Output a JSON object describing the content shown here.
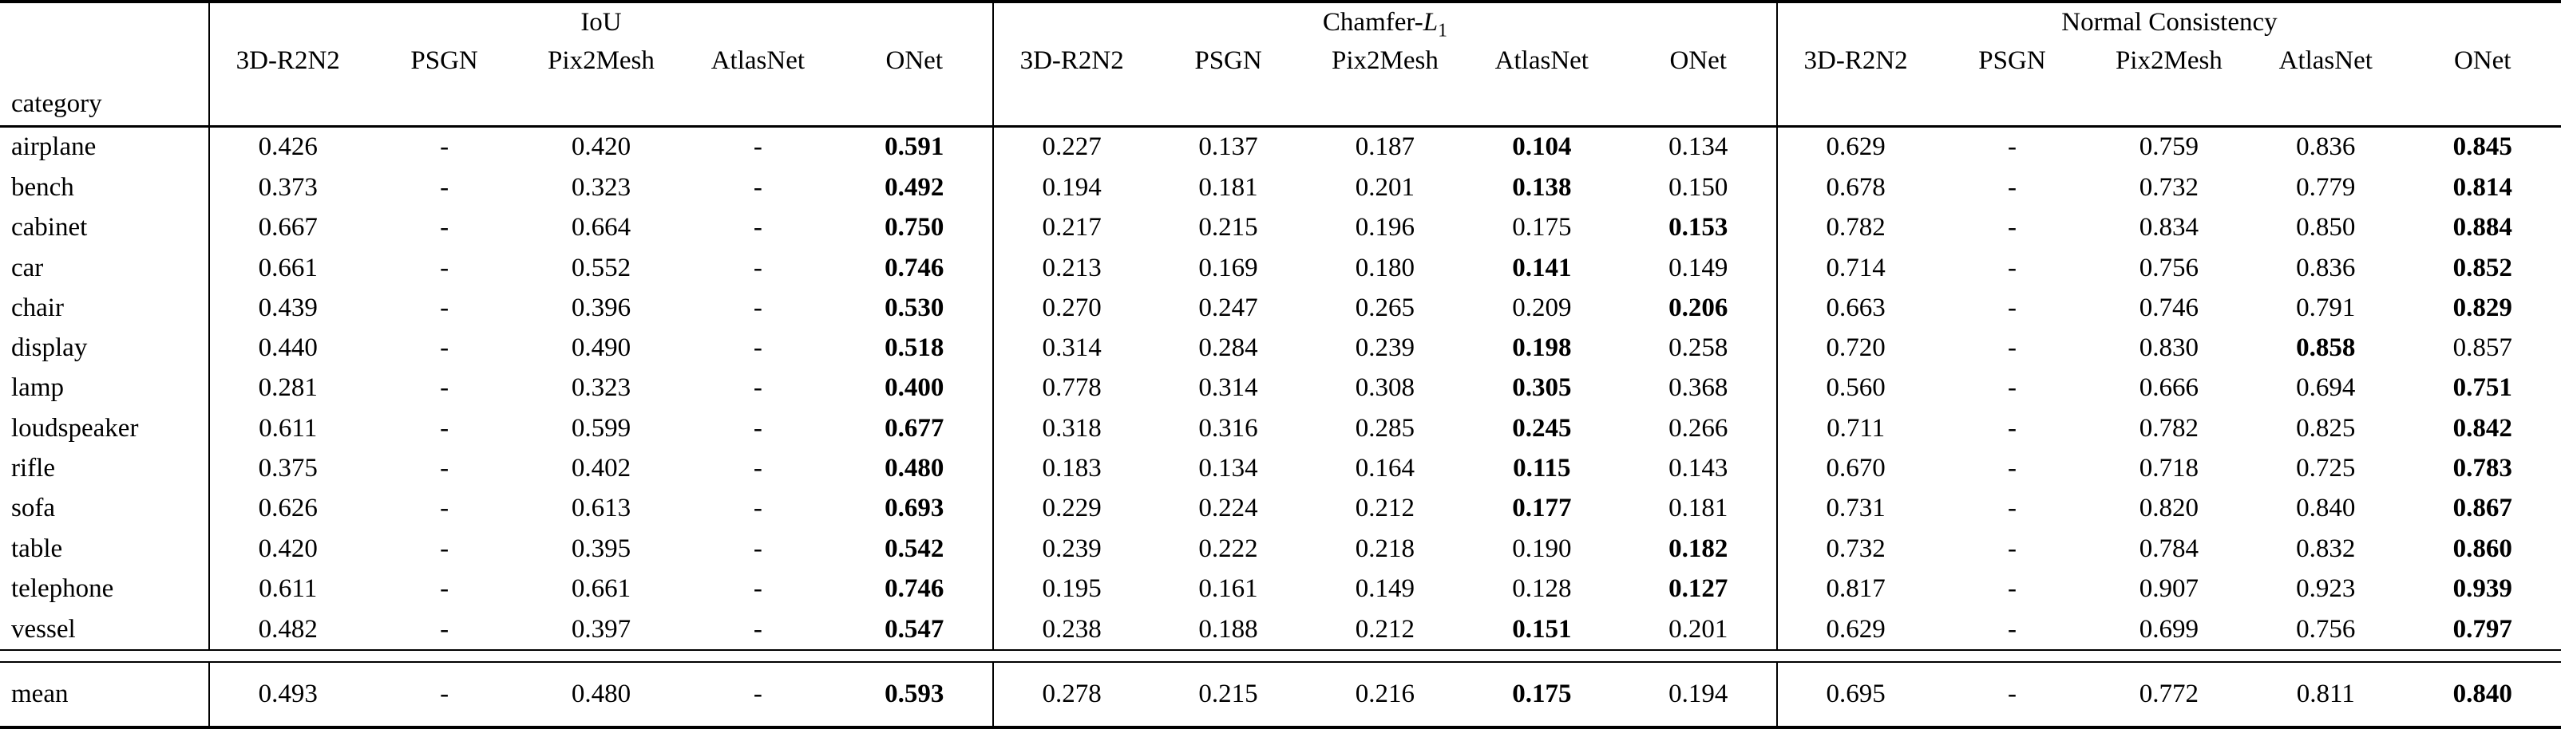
{
  "table": {
    "corner_label": "category",
    "dash": "-",
    "groups": [
      {
        "name": "iou",
        "title_parts": [
          {
            "text": "IoU"
          }
        ],
        "methods": [
          "3D-R2N2",
          "PSGN",
          "Pix2Mesh",
          "AtlasNet",
          "ONet"
        ]
      },
      {
        "name": "chamfer-l1",
        "title_parts": [
          {
            "text": "Chamfer-"
          },
          {
            "text": "L",
            "italic": true
          },
          {
            "text": "1",
            "sub": true
          }
        ],
        "methods": [
          "3D-R2N2",
          "PSGN",
          "Pix2Mesh",
          "AtlasNet",
          "ONet"
        ]
      },
      {
        "name": "normal-consistency",
        "title_parts": [
          {
            "text": "Normal Consistency"
          }
        ],
        "methods": [
          "3D-R2N2",
          "PSGN",
          "Pix2Mesh",
          "AtlasNet",
          "ONet"
        ]
      }
    ],
    "rows": [
      {
        "category": "airplane",
        "values": [
          [
            "0.426",
            "-",
            "0.420",
            "-",
            "0.591"
          ],
          [
            "0.227",
            "0.137",
            "0.187",
            "0.104",
            "0.134"
          ],
          [
            "0.629",
            "-",
            "0.759",
            "0.836",
            "0.845"
          ]
        ],
        "bold": [
          [
            4
          ],
          [
            3
          ],
          [
            4
          ]
        ]
      },
      {
        "category": "bench",
        "values": [
          [
            "0.373",
            "-",
            "0.323",
            "-",
            "0.492"
          ],
          [
            "0.194",
            "0.181",
            "0.201",
            "0.138",
            "0.150"
          ],
          [
            "0.678",
            "-",
            "0.732",
            "0.779",
            "0.814"
          ]
        ],
        "bold": [
          [
            4
          ],
          [
            3
          ],
          [
            4
          ]
        ]
      },
      {
        "category": "cabinet",
        "values": [
          [
            "0.667",
            "-",
            "0.664",
            "-",
            "0.750"
          ],
          [
            "0.217",
            "0.215",
            "0.196",
            "0.175",
            "0.153"
          ],
          [
            "0.782",
            "-",
            "0.834",
            "0.850",
            "0.884"
          ]
        ],
        "bold": [
          [
            4
          ],
          [
            4
          ],
          [
            4
          ]
        ]
      },
      {
        "category": "car",
        "values": [
          [
            "0.661",
            "-",
            "0.552",
            "-",
            "0.746"
          ],
          [
            "0.213",
            "0.169",
            "0.180",
            "0.141",
            "0.149"
          ],
          [
            "0.714",
            "-",
            "0.756",
            "0.836",
            "0.852"
          ]
        ],
        "bold": [
          [
            4
          ],
          [
            3
          ],
          [
            4
          ]
        ]
      },
      {
        "category": "chair",
        "values": [
          [
            "0.439",
            "-",
            "0.396",
            "-",
            "0.530"
          ],
          [
            "0.270",
            "0.247",
            "0.265",
            "0.209",
            "0.206"
          ],
          [
            "0.663",
            "-",
            "0.746",
            "0.791",
            "0.829"
          ]
        ],
        "bold": [
          [
            4
          ],
          [
            4
          ],
          [
            4
          ]
        ]
      },
      {
        "category": "display",
        "values": [
          [
            "0.440",
            "-",
            "0.490",
            "-",
            "0.518"
          ],
          [
            "0.314",
            "0.284",
            "0.239",
            "0.198",
            "0.258"
          ],
          [
            "0.720",
            "-",
            "0.830",
            "0.858",
            "0.857"
          ]
        ],
        "bold": [
          [
            4
          ],
          [
            3
          ],
          [
            3
          ]
        ]
      },
      {
        "category": "lamp",
        "values": [
          [
            "0.281",
            "-",
            "0.323",
            "-",
            "0.400"
          ],
          [
            "0.778",
            "0.314",
            "0.308",
            "0.305",
            "0.368"
          ],
          [
            "0.560",
            "-",
            "0.666",
            "0.694",
            "0.751"
          ]
        ],
        "bold": [
          [
            4
          ],
          [
            3
          ],
          [
            4
          ]
        ]
      },
      {
        "category": "loudspeaker",
        "values": [
          [
            "0.611",
            "-",
            "0.599",
            "-",
            "0.677"
          ],
          [
            "0.318",
            "0.316",
            "0.285",
            "0.245",
            "0.266"
          ],
          [
            "0.711",
            "-",
            "0.782",
            "0.825",
            "0.842"
          ]
        ],
        "bold": [
          [
            4
          ],
          [
            3
          ],
          [
            4
          ]
        ]
      },
      {
        "category": "rifle",
        "values": [
          [
            "0.375",
            "-",
            "0.402",
            "-",
            "0.480"
          ],
          [
            "0.183",
            "0.134",
            "0.164",
            "0.115",
            "0.143"
          ],
          [
            "0.670",
            "-",
            "0.718",
            "0.725",
            "0.783"
          ]
        ],
        "bold": [
          [
            4
          ],
          [
            3
          ],
          [
            4
          ]
        ]
      },
      {
        "category": "sofa",
        "values": [
          [
            "0.626",
            "-",
            "0.613",
            "-",
            "0.693"
          ],
          [
            "0.229",
            "0.224",
            "0.212",
            "0.177",
            "0.181"
          ],
          [
            "0.731",
            "-",
            "0.820",
            "0.840",
            "0.867"
          ]
        ],
        "bold": [
          [
            4
          ],
          [
            3
          ],
          [
            4
          ]
        ]
      },
      {
        "category": "table",
        "values": [
          [
            "0.420",
            "-",
            "0.395",
            "-",
            "0.542"
          ],
          [
            "0.239",
            "0.222",
            "0.218",
            "0.190",
            "0.182"
          ],
          [
            "0.732",
            "-",
            "0.784",
            "0.832",
            "0.860"
          ]
        ],
        "bold": [
          [
            4
          ],
          [
            4
          ],
          [
            4
          ]
        ]
      },
      {
        "category": "telephone",
        "values": [
          [
            "0.611",
            "-",
            "0.661",
            "-",
            "0.746"
          ],
          [
            "0.195",
            "0.161",
            "0.149",
            "0.128",
            "0.127"
          ],
          [
            "0.817",
            "-",
            "0.907",
            "0.923",
            "0.939"
          ]
        ],
        "bold": [
          [
            4
          ],
          [
            4
          ],
          [
            4
          ]
        ]
      },
      {
        "category": "vessel",
        "values": [
          [
            "0.482",
            "-",
            "0.397",
            "-",
            "0.547"
          ],
          [
            "0.238",
            "0.188",
            "0.212",
            "0.151",
            "0.201"
          ],
          [
            "0.629",
            "-",
            "0.699",
            "0.756",
            "0.797"
          ]
        ],
        "bold": [
          [
            4
          ],
          [
            3
          ],
          [
            4
          ]
        ]
      }
    ],
    "mean_row": {
      "category": "mean",
      "values": [
        [
          "0.493",
          "-",
          "0.480",
          "-",
          "0.593"
        ],
        [
          "0.278",
          "0.215",
          "0.216",
          "0.175",
          "0.194"
        ],
        [
          "0.695",
          "-",
          "0.772",
          "0.811",
          "0.840"
        ]
      ],
      "bold": [
        [
          4
        ],
        [
          3
        ],
        [
          4
        ]
      ]
    }
  }
}
